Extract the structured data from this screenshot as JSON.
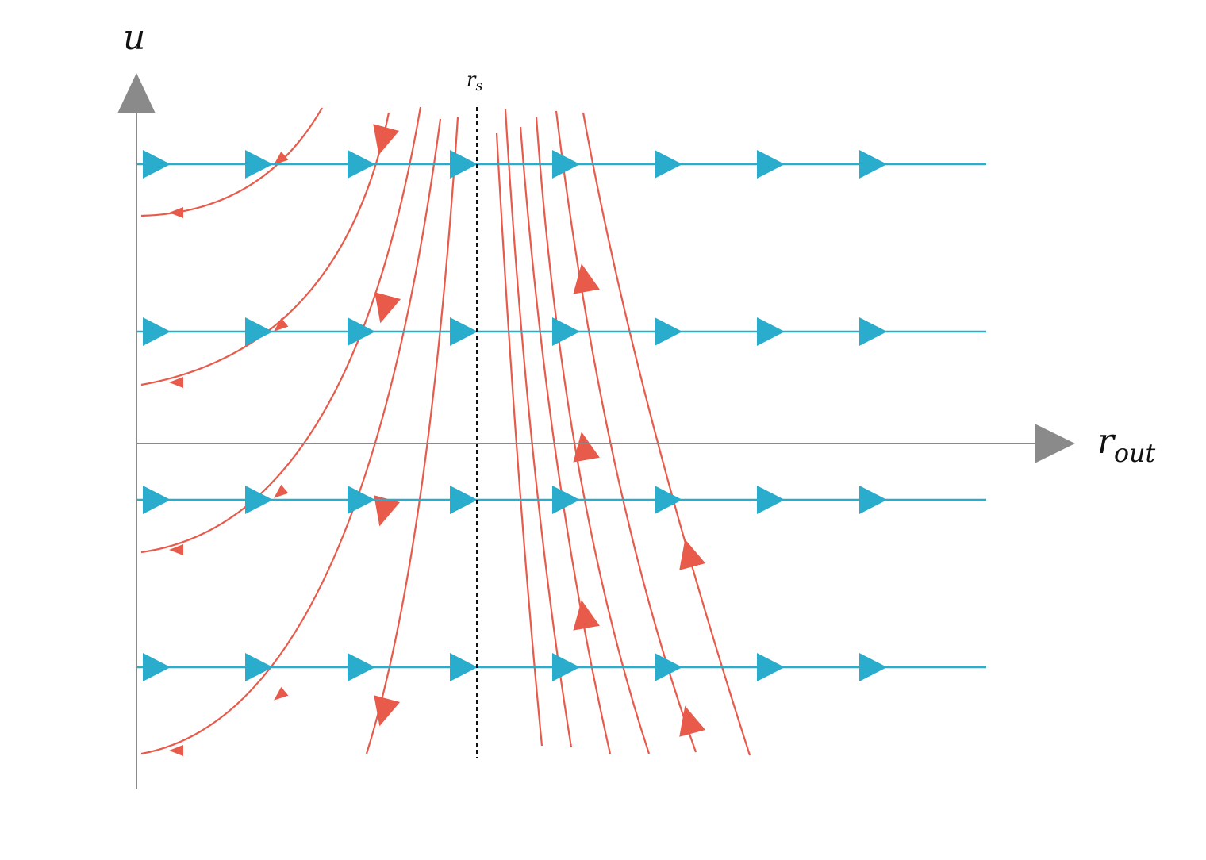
{
  "axes": {
    "y_label": "u",
    "x_label_main": "r",
    "x_label_sub": "out"
  },
  "marker": {
    "label_main": "r",
    "label_sub": "s"
  },
  "colors": {
    "axis": "#8a8a8a",
    "horizontal_flow": "#2aaccc",
    "red_flow": "#e85a4a",
    "marker_line": "#111111"
  }
}
